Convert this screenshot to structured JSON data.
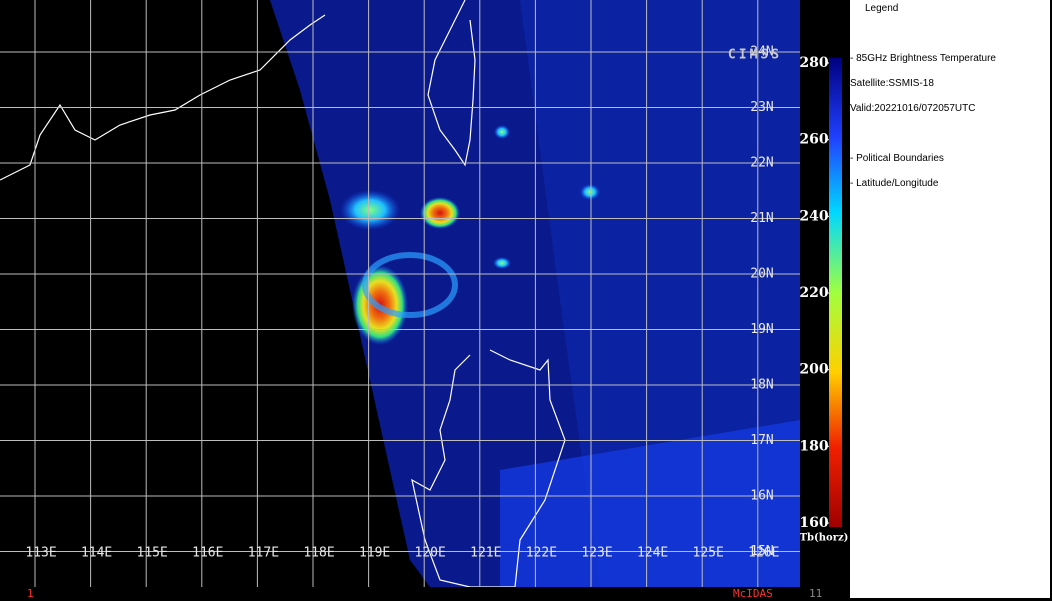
{
  "map": {
    "lat_labels": [
      "24N",
      "23N",
      "22N",
      "21N",
      "20N",
      "19N",
      "18N",
      "17N",
      "16N",
      "15N"
    ],
    "lon_labels": [
      "113E",
      "114E",
      "115E",
      "116E",
      "117E",
      "118E",
      "119E",
      "120E",
      "121E",
      "122E",
      "123E",
      "124E",
      "125E",
      "126E"
    ],
    "logo": "CIMSS"
  },
  "colorbar": {
    "lim": [
      160,
      280
    ],
    "ticks": [
      160,
      180,
      200,
      220,
      240,
      260,
      280
    ],
    "label": "Tb(horz)"
  },
  "legend": {
    "title": "Legend",
    "lines": [
      "-  85GHz Brightness Temperature",
      "Satellite:SSMIS-18",
      "Valid:20221016/072057UTC",
      "-  Political Boundaries",
      "-  Latitude/Longitude"
    ]
  },
  "footer": {
    "left": "1",
    "center": "McIDAS",
    "right": "11"
  }
}
